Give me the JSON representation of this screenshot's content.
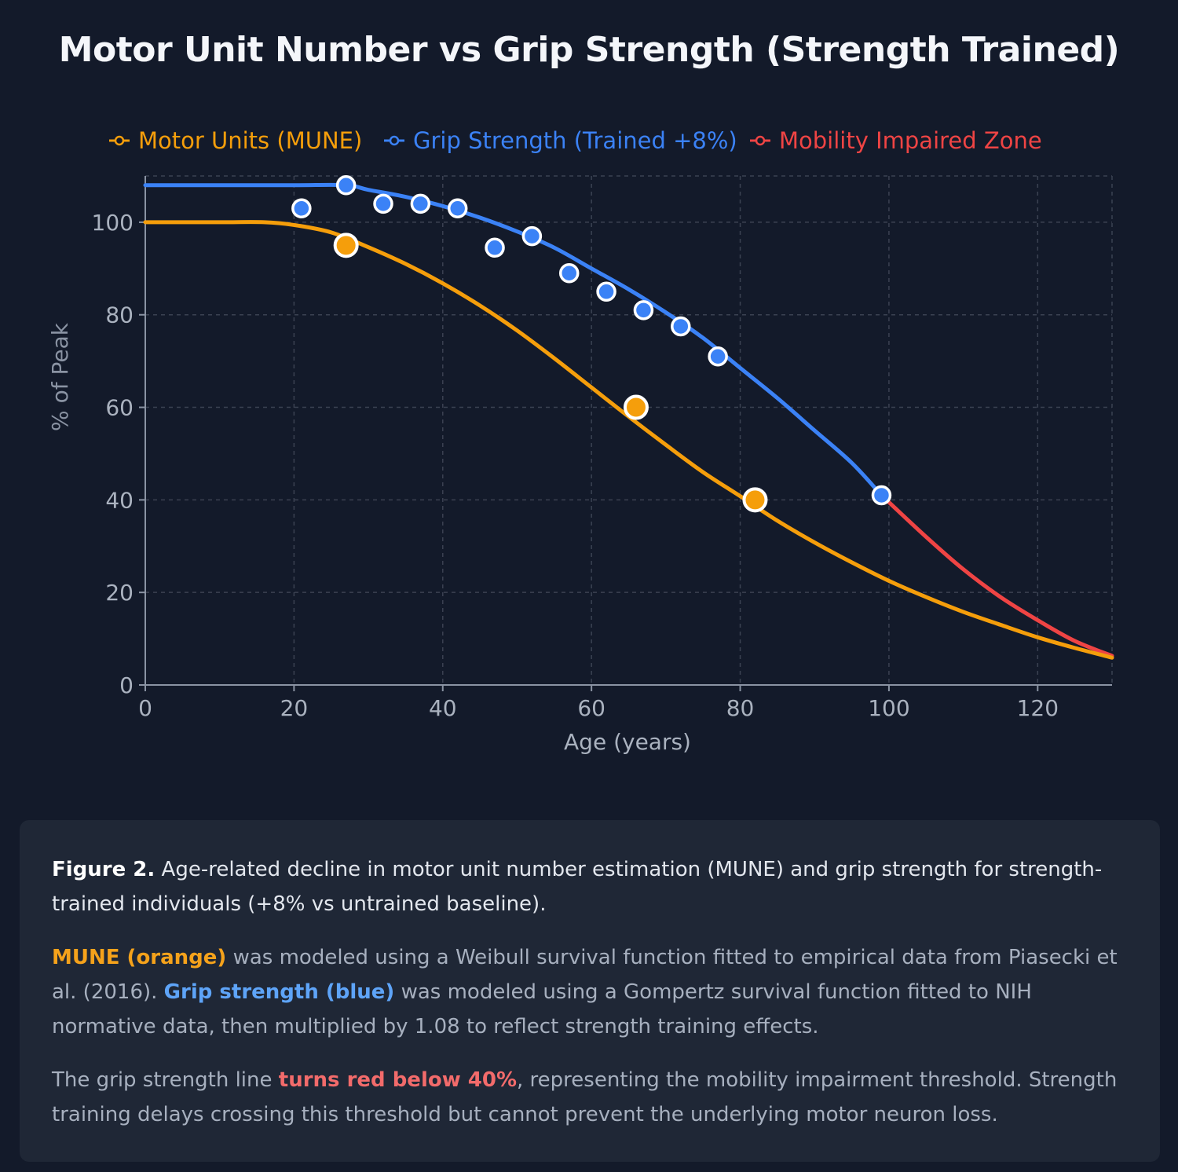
{
  "page": {
    "title": "Motor Unit Number vs Grip Strength (Strength Trained)"
  },
  "colors": {
    "background": "#131a2a",
    "mune": "#f59e0b",
    "grip": "#3b82f6",
    "impaired": "#ef4444",
    "grid": "#3b4252",
    "axis": "#8a93a3",
    "tick_text": "#aab2bf",
    "panel": "#1f2736"
  },
  "chart_data": {
    "type": "line",
    "title": "Motor Unit Number vs Grip Strength (Strength Trained)",
    "xlabel": "Age (years)",
    "ylabel": "% of Peak",
    "xlim": [
      0,
      130
    ],
    "ylim": [
      0,
      110
    ],
    "xticks": [
      0,
      20,
      40,
      60,
      80,
      100,
      120
    ],
    "yticks": [
      0,
      20,
      40,
      60,
      80,
      100
    ],
    "grid": true,
    "legend_position": "top-left",
    "legend": [
      {
        "name": "Motor Units (MUNE)",
        "color_key": "mune"
      },
      {
        "name": "Grip Strength (Trained +8%)",
        "color_key": "grip"
      },
      {
        "name": "Mobility Impaired Zone",
        "color_key": "impaired"
      }
    ],
    "series": [
      {
        "name": "Motor Units (MUNE)",
        "x": [
          0,
          10,
          16,
          20,
          25,
          30,
          35,
          40,
          45,
          50,
          55,
          60,
          65,
          70,
          75,
          80,
          85,
          90,
          95,
          100,
          105,
          110,
          115,
          120,
          125,
          130
        ],
        "values": [
          100,
          100,
          100,
          99.4,
          97.8,
          94.6,
          91,
          86.8,
          82,
          76.6,
          70.6,
          64.3,
          58,
          51.9,
          46,
          40.8,
          35.5,
          30.8,
          26.5,
          22.5,
          19,
          15.8,
          13,
          10.3,
          8,
          5.9
        ],
        "points": [
          {
            "x": 27,
            "y": 95
          },
          {
            "x": 66,
            "y": 60
          },
          {
            "x": 82,
            "y": 40
          }
        ]
      },
      {
        "name": "Grip Strength (Trained +8%)",
        "x": [
          0,
          10,
          20,
          27,
          30,
          35,
          40,
          45,
          50,
          55,
          60,
          65,
          70,
          75,
          80,
          85,
          90,
          95,
          99
        ],
        "values": [
          108,
          108,
          108,
          108,
          107,
          105.5,
          103.5,
          101,
          98,
          94.5,
          90,
          85.5,
          80.5,
          75,
          68.5,
          62,
          55,
          48,
          41
        ],
        "points": [
          {
            "x": 21,
            "y": 103
          },
          {
            "x": 27,
            "y": 108
          },
          {
            "x": 32,
            "y": 104
          },
          {
            "x": 37,
            "y": 104
          },
          {
            "x": 42,
            "y": 103
          },
          {
            "x": 47,
            "y": 94.5
          },
          {
            "x": 52,
            "y": 97
          },
          {
            "x": 57,
            "y": 89
          },
          {
            "x": 62,
            "y": 85
          },
          {
            "x": 67,
            "y": 81
          },
          {
            "x": 72,
            "y": 77.5
          },
          {
            "x": 77,
            "y": 71
          },
          {
            "x": 99,
            "y": 41
          }
        ]
      },
      {
        "name": "Mobility Impaired Zone",
        "x": [
          99,
          105,
          110,
          115,
          120,
          125,
          130
        ],
        "values": [
          41,
          32,
          25,
          19,
          14,
          9.5,
          6.3
        ],
        "points": []
      }
    ]
  },
  "caption": {
    "fig_label": "Figure 2.",
    "lead_text": " Age-related decline in motor unit number estimation (MUNE) and grip strength for strength-trained individuals (+8% vs untrained baseline).",
    "mune_highlight": "MUNE (orange)",
    "mune_text": " was modeled using a Weibull survival function fitted to empirical data from Piasecki et al. (2016). ",
    "grip_highlight": "Grip strength (blue)",
    "grip_text": " was modeled using a Gompertz survival function fitted to NIH normative data, then multiplied by 1.08 to reflect strength training effects.",
    "threshold_pre": "The grip strength line ",
    "threshold_highlight": "turns red below 40%",
    "threshold_post": ", representing the mobility impairment threshold. Strength training delays crossing this threshold but cannot prevent the underlying motor neuron loss."
  }
}
